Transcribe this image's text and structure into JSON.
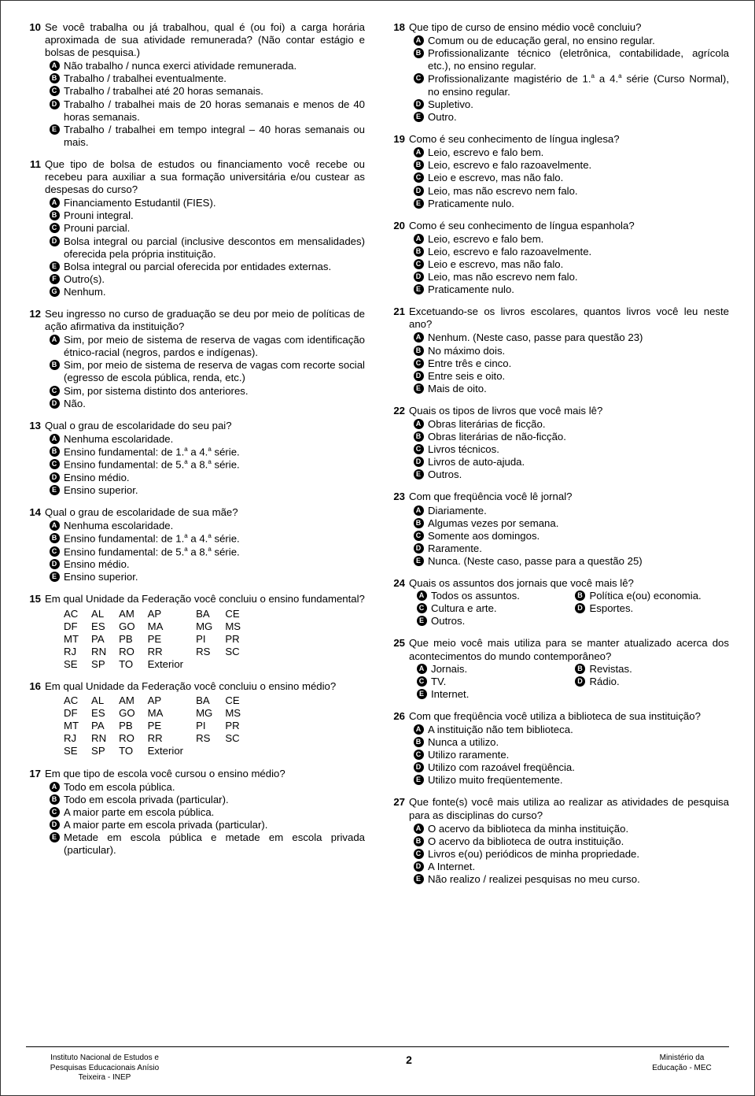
{
  "left": {
    "q10": {
      "num": "10",
      "stem": "Se você trabalha ou já trabalhou, qual é (ou foi) a carga horária aproximada de sua atividade remunerada? (Não contar estágio e bolsas de pesquisa.)",
      "opts": {
        "A": "Não trabalho / nunca exerci atividade remunerada.",
        "B": "Trabalho / trabalhei eventualmente.",
        "C": "Trabalho / trabalhei até 20 horas semanais.",
        "D": "Trabalho / trabalhei mais de 20 horas semanais e menos de 40 horas semanais.",
        "E": "Trabalho / trabalhei em tempo integral – 40 horas semanais ou mais."
      }
    },
    "q11": {
      "num": "11",
      "stem": "Que tipo de bolsa de estudos ou financiamento você recebe ou recebeu para auxiliar a sua formação universitária e/ou custear as despesas do curso?",
      "opts": {
        "A": "Financiamento Estudantil (FIES).",
        "B": "Prouni integral.",
        "C": "Prouni parcial.",
        "D": "Bolsa integral ou parcial (inclusive descontos em mensalidades) oferecida pela própria instituição.",
        "E": "Bolsa integral ou parcial oferecida por entidades externas.",
        "F": "Outro(s).",
        "G": "Nenhum."
      }
    },
    "q12": {
      "num": "12",
      "stem": "Seu ingresso no curso de graduação se deu por meio de políticas de ação afirmativa da instituição?",
      "opts": {
        "A": "Sim, por meio de sistema de reserva de vagas com identificação étnico-racial (negros, pardos e indígenas).",
        "B": "Sim, por meio de sistema de reserva de vagas com recorte social (egresso de escola pública, renda, etc.)",
        "C": "Sim, por sistema distinto dos anteriores.",
        "D": "Não."
      }
    },
    "q13": {
      "num": "13",
      "stem": "Qual o grau de escolaridade do seu pai?",
      "opts": {
        "A": "Nenhuma escolaridade.",
        "B_html": "Ensino fundamental: de 1.<sup>a</sup> a 4.<sup>a</sup> série.",
        "C_html": "Ensino fundamental: de 5.<sup>a</sup> a 8.<sup>a</sup> série.",
        "D": "Ensino médio.",
        "E": "Ensino superior."
      }
    },
    "q14": {
      "num": "14",
      "stem": "Qual o grau de escolaridade de sua mãe?",
      "opts": {
        "A": "Nenhuma escolaridade.",
        "B_html": "Ensino fundamental: de 1.<sup>a</sup> a 4.<sup>a</sup> série.",
        "C_html": "Ensino fundamental: de 5.<sup>a</sup> a 8.<sup>a</sup> série.",
        "D": "Ensino médio.",
        "E": "Ensino superior."
      }
    },
    "q15": {
      "num": "15",
      "stem": "Em qual Unidade da Federação você concluiu o ensino fundamental?"
    },
    "q16": {
      "num": "16",
      "stem": "Em qual Unidade da Federação você concluiu o ensino médio?"
    },
    "uf_rows": [
      [
        "AC",
        "AL",
        "AM",
        "AP",
        "BA",
        "CE"
      ],
      [
        "DF",
        "ES",
        "GO",
        "MA",
        "MG",
        "MS"
      ],
      [
        "MT",
        "PA",
        "PB",
        "PE",
        "PI",
        "PR"
      ],
      [
        "RJ",
        "RN",
        "RO",
        "RR",
        "RS",
        "SC"
      ],
      [
        "SE",
        "SP",
        "TO",
        "Exterior",
        "",
        ""
      ]
    ],
    "q17": {
      "num": "17",
      "stem": "Em que tipo de escola você cursou o ensino médio?",
      "opts": {
        "A": "Todo em escola pública.",
        "B": "Todo em escola privada (particular).",
        "C": "A maior parte em escola pública.",
        "D": "A maior parte em escola privada (particular).",
        "E": "Metade em escola pública e metade em escola privada (particular)."
      }
    }
  },
  "right": {
    "q18": {
      "num": "18",
      "stem": "Que tipo de curso de ensino médio você concluiu?",
      "opts": {
        "A": "Comum ou de educação geral, no ensino regular.",
        "B": "Profissionalizante técnico (eletrônica, contabilidade, agrícola etc.), no ensino regular.",
        "C_html": "Profissionalizante magistério de 1.<sup>a</sup> a 4.<sup>a</sup> série (Curso Normal), no ensino regular.",
        "D": "Supletivo.",
        "E": "Outro."
      }
    },
    "q19": {
      "num": "19",
      "stem": "Como é seu conhecimento de língua inglesa?",
      "opts": {
        "A": "Leio, escrevo e falo bem.",
        "B": "Leio, escrevo e falo razoavelmente.",
        "C": "Leio e escrevo, mas não falo.",
        "D": "Leio, mas não escrevo nem falo.",
        "E": "Praticamente nulo."
      }
    },
    "q20": {
      "num": "20",
      "stem": "Como é seu conhecimento de língua espanhola?",
      "opts": {
        "A": "Leio, escrevo e falo bem.",
        "B": "Leio, escrevo e falo razoavelmente.",
        "C": "Leio e escrevo, mas não falo.",
        "D": "Leio, mas não escrevo nem falo.",
        "E": "Praticamente nulo."
      }
    },
    "q21": {
      "num": "21",
      "stem": "Excetuando-se os livros escolares, quantos livros você leu neste ano?",
      "opts": {
        "A": "Nenhum. (Neste caso, passe para questão 23)",
        "B": "No máximo dois.",
        "C": "Entre três e cinco.",
        "D": "Entre seis e oito.",
        "E": "Mais de oito."
      }
    },
    "q22": {
      "num": "22",
      "stem": "Quais os tipos de livros que você mais lê?",
      "opts": {
        "A": "Obras literárias de ficção.",
        "B": "Obras literárias de não-ficção.",
        "C": "Livros técnicos.",
        "D": "Livros de auto-ajuda.",
        "E": "Outros."
      }
    },
    "q23": {
      "num": "23",
      "stem": "Com que freqüência você lê jornal?",
      "opts": {
        "A": "Diariamente.",
        "B": "Algumas vezes por semana.",
        "C": "Somente aos domingos.",
        "D": "Raramente.",
        "E": "Nunca. (Neste caso, passe para a questão 25)"
      }
    },
    "q24": {
      "num": "24",
      "stem": "Quais os assuntos dos jornais que você mais lê?",
      "opts": {
        "A": "Todos os assuntos.",
        "B": "Política e(ou) economia.",
        "C": "Cultura e arte.",
        "D": "Esportes.",
        "E": "Outros."
      }
    },
    "q25": {
      "num": "25",
      "stem": "Que meio você mais utiliza para se manter atualizado acerca dos acontecimentos do mundo contemporâneo?",
      "opts": {
        "A": "Jornais.",
        "B": "Revistas.",
        "C": "TV.",
        "D": "Rádio.",
        "E": "Internet."
      }
    },
    "q26": {
      "num": "26",
      "stem": "Com que freqüência você utiliza a biblioteca de sua instituição?",
      "opts": {
        "A": "A instituição não tem biblioteca.",
        "B": "Nunca a utilizo.",
        "C": "Utilizo raramente.",
        "D": "Utilizo com razoável freqüência.",
        "E": "Utilizo muito freqüentemente."
      }
    },
    "q27": {
      "num": "27",
      "stem": "Que fonte(s) você mais utiliza ao realizar as atividades de pesquisa para as disciplinas do curso?",
      "opts": {
        "A": "O acervo da biblioteca da minha instituição.",
        "B": "O acervo da biblioteca de outra instituição.",
        "C": "Livros e(ou) periódicos de minha propriedade.",
        "D": "A Internet.",
        "E": "Não realizo / realizei pesquisas no meu curso."
      }
    }
  },
  "footer": {
    "left_l1": "Instituto Nacional de Estudos e",
    "left_l2": "Pesquisas Educacionais Anísio",
    "left_l3": "Teixeira - INEP",
    "page": "2",
    "right_l1": "Ministério da",
    "right_l2": "Educação - MEC"
  }
}
